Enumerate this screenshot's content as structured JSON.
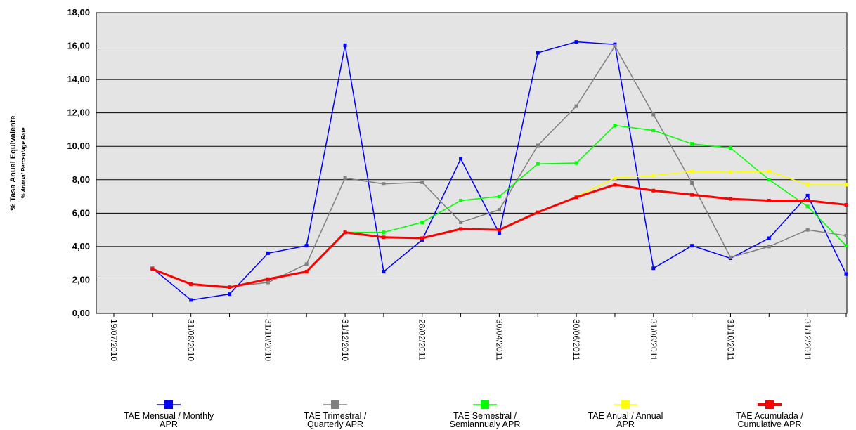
{
  "chart_data": {
    "type": "line",
    "y_axis_title": [
      "% Tasa Anual Equivalente",
      "% Annual Percentage Rate"
    ],
    "categories": [
      "19/07/2010",
      null,
      "31/08/2010",
      null,
      "31/10/2010",
      null,
      "31/12/2010",
      null,
      "28/02/2011",
      null,
      "30/04/2011",
      null,
      "30/06/2011",
      null,
      "31/08/2011",
      null,
      "31/10/2011",
      null,
      "31/12/2011",
      null
    ],
    "ylim": [
      0,
      18
    ],
    "yticks": [
      {
        "value": 0,
        "label": "0,00"
      },
      {
        "value": 2,
        "label": "2,00"
      },
      {
        "value": 4,
        "label": "4,00"
      },
      {
        "value": 6,
        "label": "6,00"
      },
      {
        "value": 8,
        "label": "8,00"
      },
      {
        "value": 10,
        "label": "10,00"
      },
      {
        "value": 12,
        "label": "12,00"
      },
      {
        "value": 14,
        "label": "14,00"
      },
      {
        "value": 16,
        "label": "16,00"
      },
      {
        "value": 18,
        "label": "18,00"
      }
    ],
    "grid": true,
    "series": [
      {
        "name": "TAE Mensual /   Monthly\nAPR",
        "color": "#0000ff",
        "values": [
          null,
          2.7,
          0.8,
          1.15,
          3.6,
          4.05,
          16.05,
          2.5,
          4.4,
          9.25,
          4.8,
          15.6,
          16.25,
          16.1,
          2.7,
          4.05,
          3.3,
          4.5,
          7.05,
          2.35
        ]
      },
      {
        "name": "TAE Trimestral /\nQuarterly APR",
        "color": "#808080",
        "values": [
          null,
          2.7,
          1.75,
          1.6,
          1.85,
          2.95,
          8.1,
          7.75,
          7.85,
          5.45,
          6.2,
          10.05,
          12.4,
          16.0,
          11.9,
          7.8,
          3.35,
          4.0,
          5.0,
          4.65
        ]
      },
      {
        "name": "TAE Semestral /\nSemiannualy APR",
        "color": "#00ff00",
        "values": [
          null,
          null,
          null,
          null,
          null,
          null,
          4.85,
          4.85,
          5.45,
          6.75,
          7.0,
          8.95,
          9.0,
          11.25,
          10.95,
          10.15,
          9.9,
          8.0,
          6.4,
          4.05
        ]
      },
      {
        "name": "TAE Anual / Annual\nAPR",
        "color": "#ffff00",
        "values": [
          null,
          null,
          null,
          null,
          null,
          null,
          null,
          null,
          null,
          null,
          null,
          null,
          7.0,
          8.1,
          8.25,
          8.5,
          8.45,
          8.5,
          7.7,
          7.7
        ]
      },
      {
        "name": "TAE Acumulada /\nCumulative APR",
        "color": "#ff0000",
        "values": [
          null,
          2.65,
          1.75,
          1.55,
          2.05,
          2.5,
          4.85,
          4.55,
          4.5,
          5.05,
          5.0,
          6.05,
          6.95,
          7.7,
          7.35,
          7.1,
          6.85,
          6.75,
          6.75,
          6.5
        ]
      }
    ]
  }
}
